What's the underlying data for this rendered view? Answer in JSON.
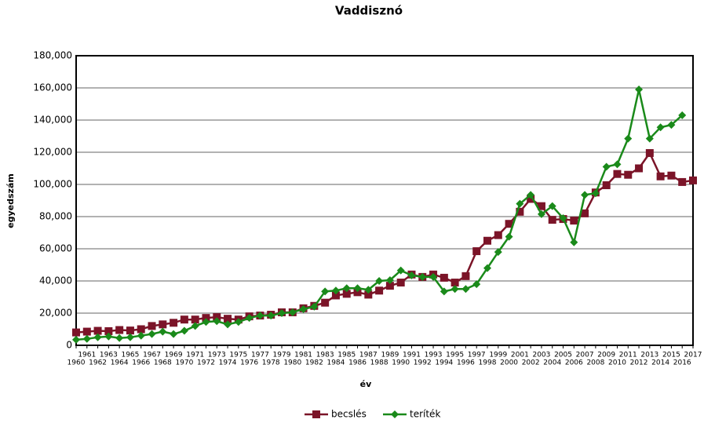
{
  "chart_data": {
    "type": "line",
    "title": "Vaddisznó",
    "x_label": "év",
    "y_label": "egyedszám",
    "categories": [
      "1960",
      "1961",
      "1962",
      "1963",
      "1964",
      "1965",
      "1966",
      "1967",
      "1968",
      "1969",
      "1970",
      "1971",
      "1972",
      "1973",
      "1974",
      "1975",
      "1976",
      "1977",
      "1978",
      "1979",
      "1980",
      "1981",
      "1982",
      "1983",
      "1984",
      "1985",
      "1986",
      "1987",
      "1988",
      "1989",
      "1990",
      "1991",
      "1992",
      "1993",
      "1994",
      "1995",
      "1996",
      "1997",
      "1998",
      "1999",
      "2000",
      "2001",
      "2002",
      "2003",
      "2004",
      "2005",
      "2006",
      "2007",
      "2008",
      "2009",
      "2010",
      "2011",
      "2012",
      "2013",
      "2014",
      "2015",
      "2016",
      "2017"
    ],
    "series": [
      {
        "name": "becslés",
        "color": "#7b1428",
        "marker": "square",
        "values": [
          8000,
          8500,
          9000,
          8800,
          9500,
          9200,
          10000,
          12000,
          13000,
          14000,
          16000,
          16000,
          17000,
          17500,
          16500,
          16000,
          18000,
          18500,
          19000,
          20500,
          20500,
          23000,
          24500,
          26500,
          31000,
          32000,
          33000,
          31500,
          34000,
          37000,
          39000,
          44000,
          42500,
          44000,
          42000,
          39000,
          43000,
          58500,
          65000,
          68500,
          75500,
          83000,
          91000,
          86500,
          78000,
          78500,
          77500,
          82000,
          95000,
          99500,
          106500,
          106000,
          110000,
          119500,
          105000,
          105500,
          101500,
          102500
        ]
      },
      {
        "name": "teríték",
        "color": "#1a8a1a",
        "marker": "diamond",
        "values": [
          3500,
          4000,
          5000,
          5500,
          4500,
          5000,
          6000,
          7000,
          8500,
          7000,
          9000,
          12000,
          14500,
          15000,
          13000,
          14500,
          17000,
          18500,
          18500,
          20000,
          20500,
          22500,
          24000,
          33500,
          34000,
          35500,
          35500,
          34500,
          40000,
          40500,
          46500,
          43500,
          42500,
          42500,
          33500,
          35000,
          35000,
          38000,
          48000,
          58000,
          67500,
          88000,
          93500,
          81500,
          86500,
          79000,
          64000,
          93500,
          94500,
          111000,
          112500,
          128500,
          159000,
          128500,
          135500,
          137000,
          143000,
          null
        ]
      }
    ],
    "ylim": [
      0,
      180000
    ],
    "yticks": [
      0,
      {
        "value": 20000,
        "label": "20,000"
      },
      {
        "value": 40000,
        "label": "40,000"
      },
      {
        "value": 60000,
        "label": "60,000"
      },
      {
        "value": 80000,
        "label": "80,000"
      },
      {
        "value": 100000,
        "label": "100,000"
      },
      {
        "value": 120000,
        "label": "120,000"
      },
      {
        "value": 140000,
        "label": "140,000"
      },
      {
        "value": 160000,
        "label": "160,000"
      },
      {
        "value": 180000,
        "label": "180,000"
      }
    ],
    "grid": true,
    "legend": "bottom"
  }
}
